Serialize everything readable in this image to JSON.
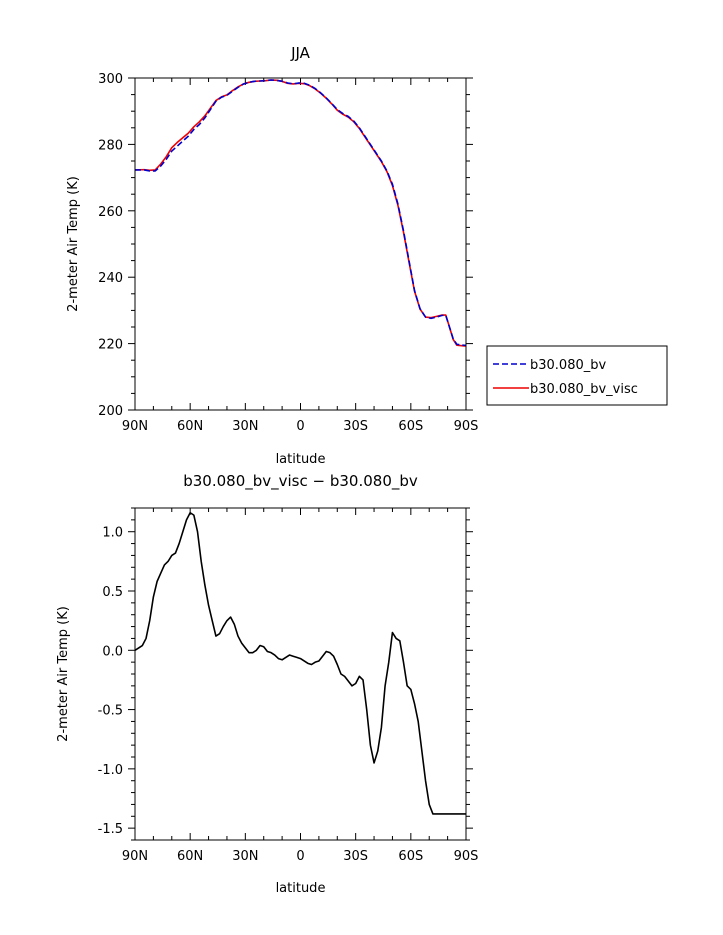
{
  "chart_data": [
    {
      "type": "line",
      "title": "JJA",
      "xlabel": "latitude",
      "ylabel": "2-meter Air Temp (K)",
      "xlim": [
        90,
        -90
      ],
      "ylim": [
        200,
        300
      ],
      "x_ticks": [
        90,
        60,
        30,
        0,
        -30,
        -60,
        -90
      ],
      "x_tick_labels": [
        "90N",
        "60N",
        "30N",
        "0",
        "30S",
        "60S",
        "90S"
      ],
      "y_ticks": [
        200,
        220,
        240,
        260,
        280,
        300
      ],
      "y_tick_labels": [
        "200",
        "220",
        "240",
        "260",
        "280",
        "300"
      ],
      "legend_position": "right",
      "series": [
        {
          "name": "b30.080_bv",
          "color": "#0000cc",
          "dash": "dashed",
          "x": [
            90,
            85,
            82,
            79,
            76,
            73,
            70,
            67,
            64,
            61,
            58,
            55,
            52,
            49,
            46,
            43,
            40,
            37,
            34,
            31,
            28,
            25,
            22,
            19,
            16,
            13,
            10,
            7,
            4,
            1,
            -2,
            -5,
            -8,
            -11,
            -14,
            -17,
            -20,
            -23,
            -26,
            -29,
            -32,
            -35,
            -38,
            -41,
            -44,
            -47,
            -50,
            -53,
            -56,
            -59,
            -62,
            -65,
            -68,
            -71,
            -74,
            -77,
            -79,
            -81,
            -83,
            -85,
            -87,
            -89,
            -90
          ],
          "y": [
            272.3,
            272.3,
            272.0,
            272.0,
            273.5,
            275.5,
            278.0,
            279.5,
            281.0,
            282.5,
            284.5,
            286.0,
            288.0,
            290.5,
            293.0,
            294.2,
            294.8,
            296.0,
            297.2,
            298.2,
            298.7,
            299.0,
            299.1,
            299.2,
            299.4,
            299.3,
            299.0,
            298.5,
            298.2,
            298.5,
            298.4,
            297.8,
            296.8,
            295.5,
            294.0,
            292.3,
            290.5,
            289.3,
            288.4,
            287.0,
            285.0,
            282.5,
            280.0,
            277.5,
            275.0,
            272.0,
            268.0,
            262.0,
            254.0,
            245.0,
            236.0,
            230.5,
            228.0,
            227.6,
            228.0,
            228.5,
            228.5,
            225.0,
            221.5,
            219.8,
            219.6,
            219.5,
            219.5
          ]
        },
        {
          "name": "b30.080_bv_visc",
          "color": "#ee0000",
          "dash": "solid",
          "x": [
            90,
            85,
            82,
            79,
            76,
            73,
            70,
            67,
            64,
            61,
            58,
            55,
            52,
            49,
            46,
            43,
            40,
            37,
            34,
            31,
            28,
            25,
            22,
            19,
            16,
            13,
            10,
            7,
            4,
            1,
            -2,
            -5,
            -8,
            -11,
            -14,
            -17,
            -20,
            -23,
            -26,
            -29,
            -32,
            -35,
            -38,
            -41,
            -44,
            -47,
            -50,
            -53,
            -56,
            -59,
            -62,
            -65,
            -68,
            -71,
            -74,
            -77,
            -79,
            -81,
            -83,
            -85,
            -87,
            -89,
            -90
          ],
          "y": [
            272.3,
            272.4,
            272.2,
            272.3,
            274.1,
            276.3,
            279.0,
            280.6,
            282.0,
            283.4,
            285.3,
            286.8,
            288.6,
            290.9,
            293.2,
            294.3,
            294.9,
            296.2,
            297.3,
            298.2,
            298.7,
            299.0,
            299.1,
            299.2,
            299.4,
            299.3,
            299.0,
            298.4,
            298.2,
            298.4,
            298.3,
            297.7,
            296.7,
            295.4,
            293.9,
            292.2,
            290.3,
            289.1,
            288.2,
            286.8,
            284.8,
            282.3,
            279.8,
            277.3,
            274.8,
            271.8,
            267.6,
            261.6,
            253.6,
            244.6,
            235.8,
            230.4,
            228.0,
            227.8,
            228.2,
            228.6,
            228.6,
            225.0,
            221.3,
            219.5,
            219.4,
            219.3,
            219.3
          ]
        }
      ]
    },
    {
      "type": "line",
      "title": "b30.080_bv_visc − b30.080_bv",
      "xlabel": "latitude",
      "ylabel": "2-meter Air Temp (K)",
      "xlim": [
        90,
        -90
      ],
      "ylim": [
        -1.6,
        1.2
      ],
      "x_ticks": [
        90,
        60,
        30,
        0,
        -30,
        -60,
        -90
      ],
      "x_tick_labels": [
        "90N",
        "60N",
        "30N",
        "0",
        "30S",
        "60S",
        "90S"
      ],
      "y_ticks": [
        -1.5,
        -1.0,
        -0.5,
        0.0,
        0.5,
        1.0
      ],
      "y_tick_labels": [
        "-1.5",
        "-1.0",
        "-0.5",
        "0.0",
        "0.5",
        "1.0"
      ],
      "series": [
        {
          "color": "#000000",
          "dash": "solid",
          "x": [
            90,
            88,
            86,
            84,
            82,
            80,
            78,
            76,
            74,
            72,
            70,
            68,
            66,
            64,
            62,
            60,
            58,
            56,
            54,
            52,
            50,
            48,
            46,
            44,
            42,
            40,
            38,
            36,
            34,
            32,
            30,
            28,
            26,
            24,
            22,
            20,
            18,
            16,
            14,
            12,
            10,
            8,
            6,
            4,
            2,
            0,
            -2,
            -4,
            -6,
            -8,
            -10,
            -12,
            -14,
            -16,
            -18,
            -20,
            -22,
            -24,
            -26,
            -28,
            -30,
            -32,
            -34,
            -36,
            -38,
            -40,
            -42,
            -44,
            -46,
            -48,
            -50,
            -52,
            -54,
            -56,
            -58,
            -60,
            -62,
            -64,
            -66,
            -68,
            -70,
            -72,
            -74,
            -76,
            -78,
            -80,
            -82,
            -84,
            -86,
            -88,
            -90
          ],
          "y": [
            0.0,
            0.02,
            0.04,
            0.1,
            0.25,
            0.45,
            0.58,
            0.65,
            0.72,
            0.75,
            0.8,
            0.82,
            0.9,
            1.0,
            1.1,
            1.16,
            1.14,
            1.0,
            0.75,
            0.55,
            0.38,
            0.25,
            0.12,
            0.14,
            0.2,
            0.25,
            0.28,
            0.22,
            0.12,
            0.06,
            0.02,
            -0.02,
            -0.02,
            0.0,
            0.04,
            0.03,
            -0.01,
            -0.02,
            -0.04,
            -0.07,
            -0.08,
            -0.06,
            -0.04,
            -0.05,
            -0.06,
            -0.07,
            -0.09,
            -0.11,
            -0.12,
            -0.1,
            -0.09,
            -0.05,
            -0.01,
            -0.02,
            -0.05,
            -0.12,
            -0.2,
            -0.22,
            -0.26,
            -0.3,
            -0.28,
            -0.22,
            -0.25,
            -0.5,
            -0.8,
            -0.95,
            -0.85,
            -0.65,
            -0.3,
            -0.1,
            0.15,
            0.1,
            0.08,
            -0.1,
            -0.3,
            -0.33,
            -0.45,
            -0.6,
            -0.85,
            -1.1,
            -1.3,
            -1.38,
            -1.38,
            -1.38,
            -1.38,
            -1.38,
            -1.38,
            -1.38,
            -1.38,
            -1.38,
            -1.38
          ]
        }
      ]
    }
  ]
}
